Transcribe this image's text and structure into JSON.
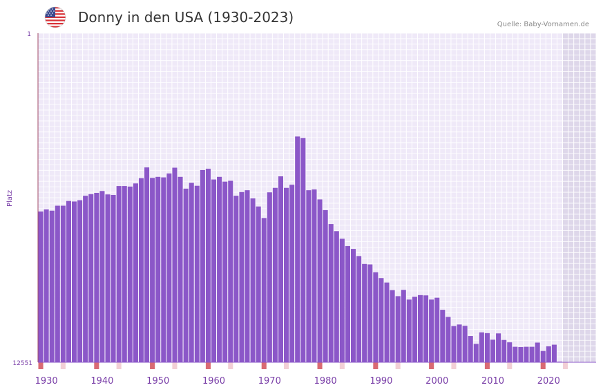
{
  "header": {
    "title": "Donny in den USA (1930-2023)",
    "source": "Quelle: Baby-Vornamen.de",
    "flag_icon": "us-flag-icon"
  },
  "colors": {
    "bar": "#8b57c8",
    "plot_bg": "#efe9f8",
    "grid": "#ffffff",
    "future_shade": "#d9d2e6",
    "axis": "#a04a66",
    "tick_text": "#7a3fa8",
    "marker": "#d96a73",
    "marker_light": "#f2cfd5"
  },
  "chart_data": {
    "type": "bar",
    "title": "Donny in den USA (1930-2023)",
    "ylabel": "Platz",
    "xlabel": "",
    "y_inverted": true,
    "ylim": [
      1,
      12551
    ],
    "y_ticks": [
      "1",
      "12551"
    ],
    "xlim": [
      1928.5,
      2028.5
    ],
    "x_ticks": [
      1930,
      1940,
      1950,
      1960,
      1970,
      1980,
      1990,
      2000,
      2010,
      2020
    ],
    "x_tick_labels": [
      "1930",
      "1940",
      "1950",
      "1960",
      "1970",
      "1980",
      "1990",
      "2000",
      "2010",
      "2020"
    ],
    "future_from": 2022.5,
    "series": [
      {
        "name": "Platz",
        "years": [
          1929,
          1930,
          1931,
          1932,
          1933,
          1934,
          1935,
          1936,
          1937,
          1938,
          1939,
          1940,
          1941,
          1942,
          1943,
          1944,
          1945,
          1946,
          1947,
          1948,
          1949,
          1950,
          1951,
          1952,
          1953,
          1954,
          1955,
          1956,
          1957,
          1958,
          1959,
          1960,
          1961,
          1962,
          1963,
          1964,
          1965,
          1966,
          1967,
          1968,
          1969,
          1970,
          1971,
          1972,
          1973,
          1974,
          1975,
          1976,
          1977,
          1978,
          1979,
          1980,
          1981,
          1982,
          1983,
          1984,
          1985,
          1986,
          1987,
          1988,
          1989,
          1990,
          1991,
          1992,
          1993,
          1994,
          1995,
          1996,
          1997,
          1998,
          1999,
          2000,
          2001,
          2002,
          2003,
          2004,
          2005,
          2006,
          2007,
          2008,
          2009,
          2010,
          2011,
          2012,
          2013,
          2014,
          2015,
          2016,
          2017,
          2018,
          2019,
          2020,
          2021,
          2022
        ],
        "values": [
          6800,
          6720,
          6770,
          6580,
          6580,
          6400,
          6420,
          6370,
          6200,
          6140,
          6090,
          6020,
          6150,
          6170,
          5830,
          5830,
          5850,
          5730,
          5530,
          5120,
          5520,
          5480,
          5500,
          5350,
          5130,
          5480,
          5930,
          5710,
          5820,
          5220,
          5170,
          5580,
          5480,
          5660,
          5630,
          6200,
          6060,
          5990,
          6300,
          6610,
          7050,
          6070,
          5900,
          5460,
          5900,
          5780,
          3940,
          4000,
          5990,
          5960,
          6340,
          6750,
          7280,
          7550,
          7840,
          8120,
          8230,
          8500,
          8800,
          8820,
          9120,
          9340,
          9510,
          9800,
          10030,
          9790,
          10160,
          10050,
          9990,
          10000,
          10160,
          10090,
          10550,
          10820,
          11170,
          11110,
          11160,
          11550,
          11850,
          11410,
          11440,
          11690,
          11450,
          11700,
          11790,
          11960,
          11970,
          11960,
          11960,
          11800,
          12120,
          11940,
          11880,
          12551
        ]
      }
    ]
  }
}
